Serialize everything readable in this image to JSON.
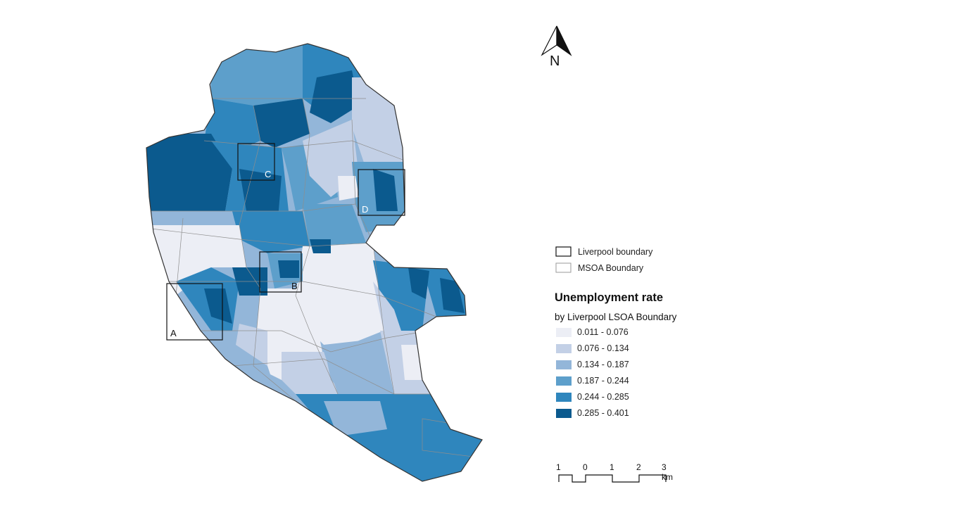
{
  "north_arrow": {
    "label": "N",
    "icon": "north-arrow-icon"
  },
  "inset_boxes": [
    {
      "label": "A"
    },
    {
      "label": "B"
    },
    {
      "label": "C"
    },
    {
      "label": "D"
    }
  ],
  "legend": {
    "boundaries": [
      {
        "label": "Liverpool boundary",
        "stroke": "#111111"
      },
      {
        "label": "MSOA Boundary",
        "stroke": "#9a9a9a"
      }
    ],
    "title": "Unemployment rate",
    "subtitle": "by Liverpool LSOA Boundary",
    "classes": [
      {
        "label": "0.011 - 0.076",
        "color": "#eceef5"
      },
      {
        "label": "0.076 - 0.134",
        "color": "#c3d0e6"
      },
      {
        "label": "0.134 - 0.187",
        "color": "#93b6d9"
      },
      {
        "label": "0.187 - 0.244",
        "color": "#5d9fcb"
      },
      {
        "label": "0.244 - 0.285",
        "color": "#2f86bd"
      },
      {
        "label": "0.285 - 0.401",
        "color": "#0b5a8e"
      }
    ]
  },
  "scale_bar": {
    "ticks": [
      "1",
      "0",
      "1",
      "2",
      "3 km"
    ]
  }
}
